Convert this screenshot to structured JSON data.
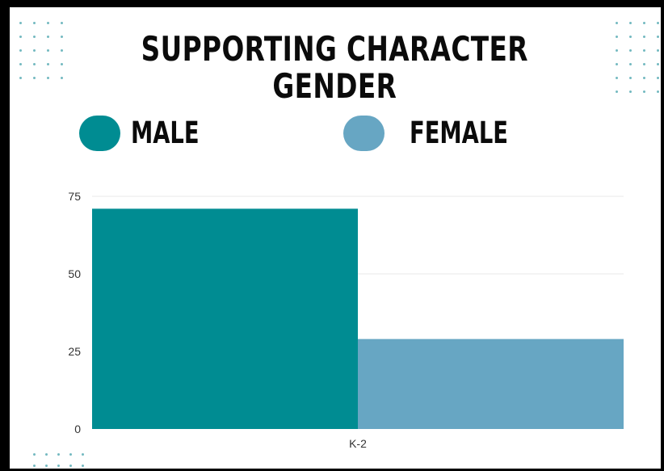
{
  "colors": {
    "male": "#008c92",
    "female": "#67a6c3",
    "dots": "#73b9c0",
    "grid": "#e8e8e8"
  },
  "chart_data": {
    "type": "bar",
    "title": "SUPPORTING CHARACTER\nGENDER",
    "categories": [
      "K-2"
    ],
    "series": [
      {
        "name": "MALE",
        "values": [
          71
        ]
      },
      {
        "name": "FEMALE",
        "values": [
          29
        ]
      }
    ],
    "ylim": [
      0,
      75
    ],
    "yticks": [
      0,
      25,
      50,
      75
    ],
    "grid": true,
    "legend": "top"
  }
}
